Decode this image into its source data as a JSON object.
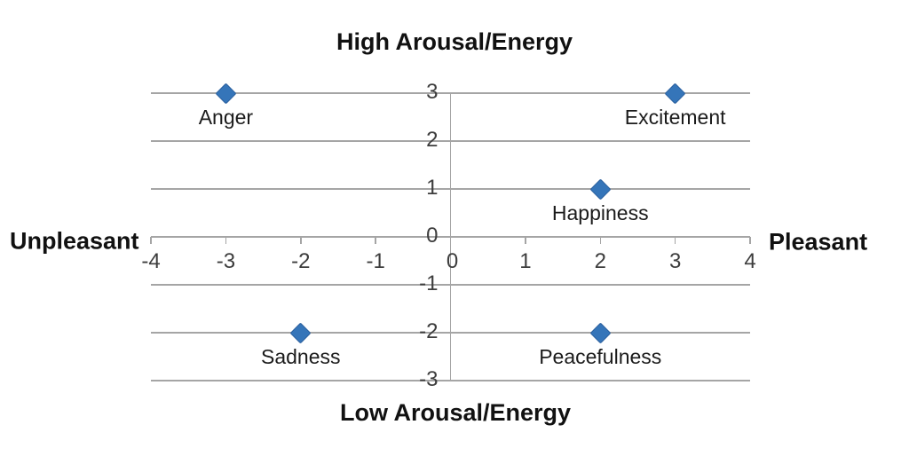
{
  "chart_data": {
    "type": "scatter",
    "title_top": "High Arousal/Energy",
    "title_bottom": "Low Arousal/Energy",
    "label_left": "Unpleasant",
    "label_right": "Pleasant",
    "xlim": [
      -4,
      4
    ],
    "ylim": [
      -3,
      3
    ],
    "x_ticks": [
      -4,
      -3,
      -2,
      -1,
      0,
      1,
      2,
      3,
      4
    ],
    "y_ticks": [
      3,
      2,
      1,
      0,
      -1,
      -2,
      -3
    ],
    "grid": "horizontal-only",
    "legend_position": "none",
    "marker_shape": "diamond",
    "marker_color": "#3575b9",
    "gridline_color": "#a5a5a5",
    "points": [
      {
        "label": "Anger",
        "x": -3,
        "y": 3
      },
      {
        "label": "Excitement",
        "x": 3,
        "y": 3
      },
      {
        "label": "Happiness",
        "x": 2,
        "y": 1
      },
      {
        "label": "Sadness",
        "x": -2,
        "y": -2
      },
      {
        "label": "Peacefulness",
        "x": 2,
        "y": -2
      }
    ]
  }
}
